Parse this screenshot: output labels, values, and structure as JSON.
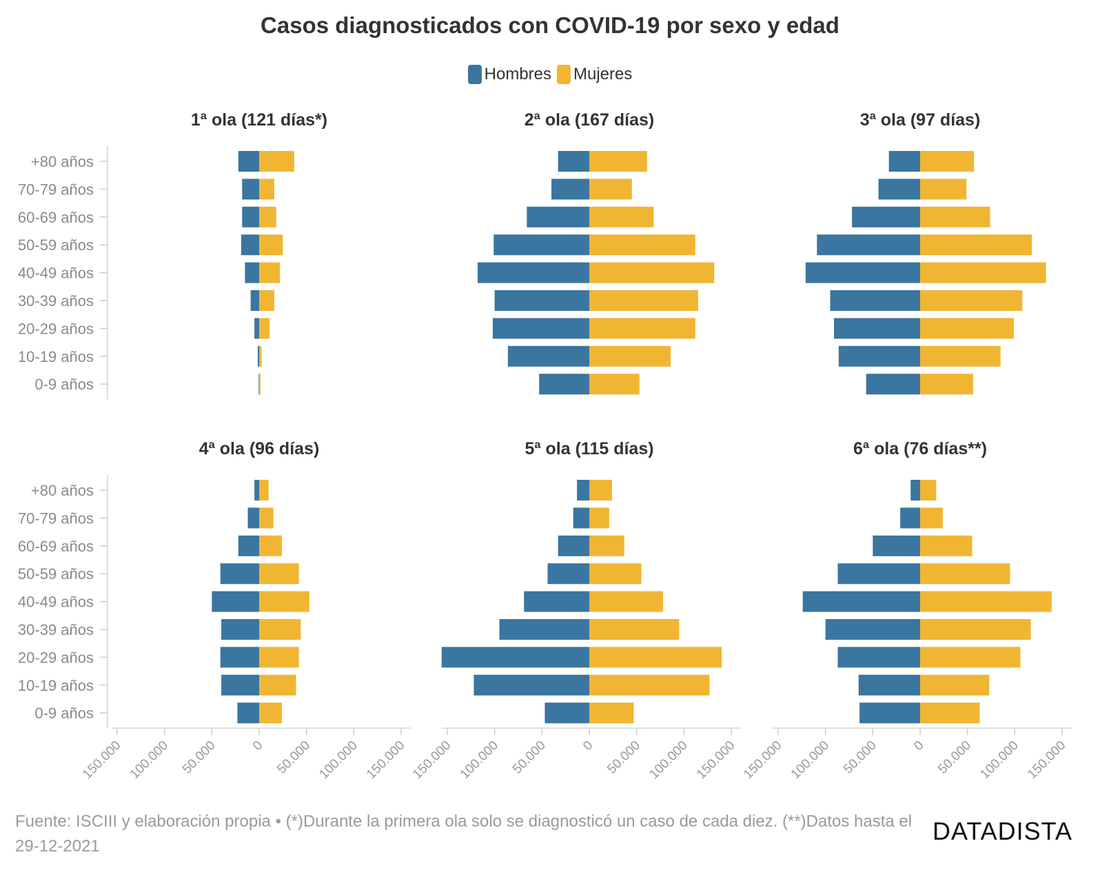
{
  "title": "Casos diagnosticados con COVID-19 por sexo y edad",
  "legend": [
    {
      "label": "Hombres",
      "color": "#3a76a0"
    },
    {
      "label": "Mujeres",
      "color": "#f0b633"
    }
  ],
  "footer": "Fuente: ISCIII y elaboración propia • (*)Durante la primera ola solo se diagnosticó un caso de cada diez. (**)Datos hasta el 29-12-2021",
  "brand": "DATADISTA",
  "chart_data": {
    "type": "bar",
    "orientation": "horizontal-diverging",
    "categories": [
      "+80 años",
      "70-79 años",
      "60-69 años",
      "50-59 años",
      "40-49 años",
      "30-39 años",
      "20-29 años",
      "10-19 años",
      "0-9 años"
    ],
    "xlim": [
      -150000,
      150000
    ],
    "xticks": [
      -150000,
      -100000,
      -50000,
      0,
      50000,
      100000,
      150000
    ],
    "xtick_labels": [
      "150.000",
      "100.000",
      "50.000",
      "0",
      "50.000",
      "100.000",
      "150.000"
    ],
    "series_names": [
      "Hombres",
      "Mujeres"
    ],
    "panels": [
      {
        "title": "1ª ola (121 días*)",
        "hombres": [
          22000,
          18000,
          18000,
          19000,
          15000,
          9000,
          5000,
          1500,
          500
        ],
        "mujeres": [
          37000,
          16000,
          18000,
          25000,
          22000,
          16000,
          11000,
          2500,
          1500
        ]
      },
      {
        "title": "2ª ola (167 días)",
        "hombres": [
          33000,
          40000,
          66000,
          101000,
          118000,
          100000,
          102000,
          86000,
          53000
        ],
        "mujeres": [
          61000,
          45000,
          68000,
          112000,
          132000,
          115000,
          112000,
          86000,
          53000
        ]
      },
      {
        "title": "3ª ola (97 días)",
        "hombres": [
          33000,
          44000,
          72000,
          109000,
          121000,
          95000,
          91000,
          86000,
          57000
        ],
        "mujeres": [
          57000,
          49000,
          74000,
          118000,
          133000,
          108000,
          99000,
          85000,
          56000
        ]
      },
      {
        "title": "4ª ola (96 días)",
        "hombres": [
          5000,
          12000,
          22000,
          41000,
          50000,
          40000,
          41000,
          40000,
          23000
        ],
        "mujeres": [
          10000,
          15000,
          24000,
          42000,
          53000,
          44000,
          42000,
          39000,
          24000
        ]
      },
      {
        "title": "5ª ola (115 días)",
        "hombres": [
          13000,
          17000,
          33000,
          44000,
          69000,
          95000,
          156000,
          122000,
          47000
        ],
        "mujeres": [
          24000,
          21000,
          37000,
          55000,
          78000,
          95000,
          140000,
          127000,
          47000
        ]
      },
      {
        "title": "6ª ola (76 días**)",
        "hombres": [
          10000,
          21000,
          50000,
          87000,
          124000,
          100000,
          87000,
          65000,
          64000
        ],
        "mujeres": [
          17000,
          24000,
          55000,
          95000,
          139000,
          117000,
          106000,
          73000,
          63000
        ]
      }
    ]
  }
}
